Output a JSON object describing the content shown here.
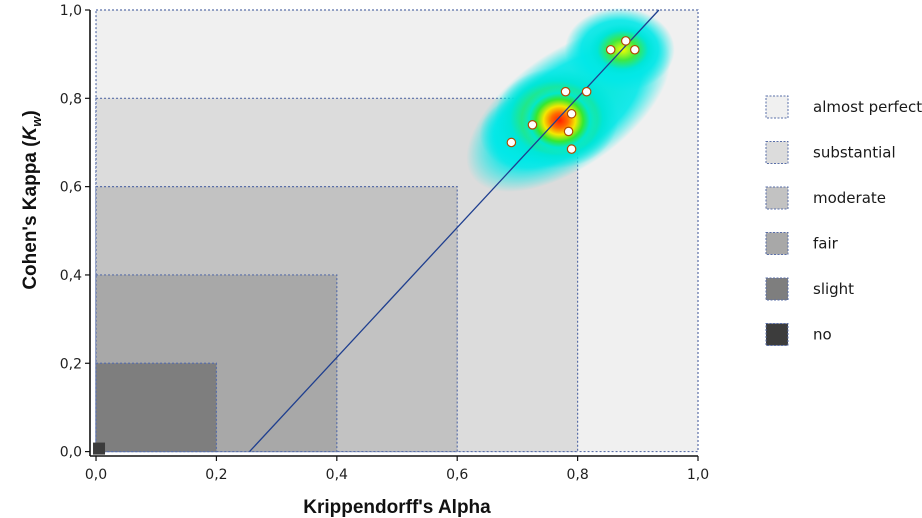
{
  "chart_data": {
    "type": "scatter",
    "xlabel": "Krippendorff's Alpha",
    "ylabel": "Cohen's Kappa (",
    "ylabel_symbol": "K",
    "ylabel_subscript": "w",
    "ylabel_close": ")",
    "xlim": [
      -0.01,
      1.0
    ],
    "ylim": [
      -0.01,
      1.0
    ],
    "x_ticks": [
      "0,0",
      "0,2",
      "0,4",
      "0,6",
      "0,8",
      "1,0"
    ],
    "x_tick_values": [
      0.0,
      0.2,
      0.4,
      0.6,
      0.8,
      1.0
    ],
    "y_ticks": [
      "0,0",
      "0,2",
      "0,4",
      "0,6",
      "0,8",
      "1,0"
    ],
    "y_tick_values": [
      0.0,
      0.2,
      0.4,
      0.6,
      0.8,
      1.0
    ],
    "agreement_regions": [
      {
        "label": "almost perfect",
        "upper": 1.0,
        "color": "#f0f0f0"
      },
      {
        "label": "substantial",
        "upper": 0.8,
        "color": "#dcdcdc"
      },
      {
        "label": "moderate",
        "upper": 0.6,
        "color": "#c2c2c2"
      },
      {
        "label": "fair",
        "upper": 0.4,
        "color": "#a8a8a8"
      },
      {
        "label": "slight",
        "upper": 0.2,
        "color": "#7e7e7e"
      },
      {
        "label": "no",
        "upper": 0.0,
        "color": "#3c3c3c"
      }
    ],
    "points": [
      {
        "x": 0.69,
        "y": 0.7
      },
      {
        "x": 0.725,
        "y": 0.74
      },
      {
        "x": 0.78,
        "y": 0.815
      },
      {
        "x": 0.815,
        "y": 0.815
      },
      {
        "x": 0.79,
        "y": 0.765
      },
      {
        "x": 0.785,
        "y": 0.725
      },
      {
        "x": 0.79,
        "y": 0.685
      },
      {
        "x": 0.855,
        "y": 0.91
      },
      {
        "x": 0.88,
        "y": 0.93
      },
      {
        "x": 0.895,
        "y": 0.91
      }
    ],
    "regression_line": {
      "x": [
        0.255,
        0.935
      ],
      "y": [
        0.0,
        1.0
      ],
      "color": "#1f3f8f"
    },
    "density_overlay": true,
    "legend_position": "right"
  }
}
